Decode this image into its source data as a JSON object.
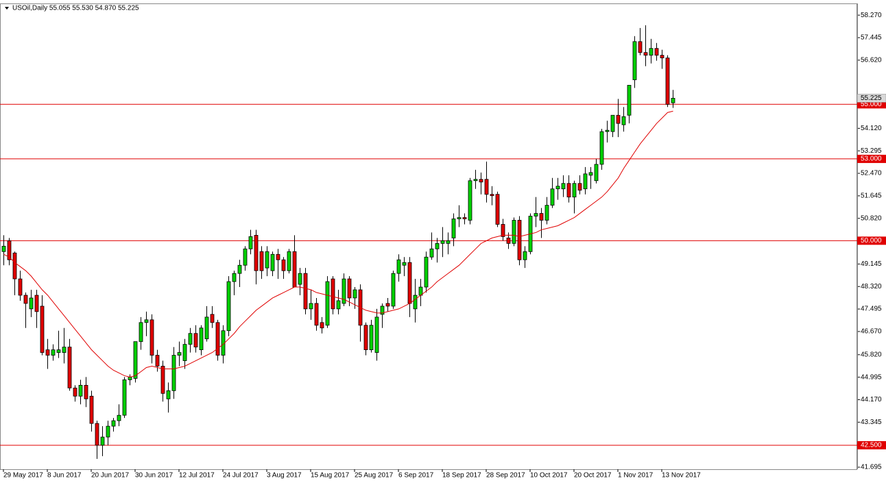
{
  "chart_data": {
    "type": "candlestick",
    "title": "USOil,Daily  55.055 55.530 54.870 55.225",
    "categories": [
      "29 May 2017",
      null,
      null,
      null,
      null,
      null,
      null,
      null,
      "8 Jun 2017",
      null,
      null,
      null,
      null,
      null,
      null,
      null,
      "20 Jun 2017",
      null,
      null,
      null,
      null,
      null,
      null,
      null,
      "30 Jun 2017",
      null,
      null,
      null,
      null,
      null,
      null,
      null,
      "12 Jul 2017",
      null,
      null,
      null,
      null,
      null,
      null,
      null,
      "24 Jul 2017",
      null,
      null,
      null,
      null,
      null,
      null,
      null,
      "3 Aug 2017",
      null,
      null,
      null,
      null,
      null,
      null,
      null,
      "15 Aug 2017",
      null,
      null,
      null,
      null,
      null,
      null,
      null,
      "25 Aug 2017",
      null,
      null,
      null,
      null,
      null,
      null,
      null,
      "6 Sep 2017",
      null,
      null,
      null,
      null,
      null,
      null,
      null,
      "18 Sep 2017",
      null,
      null,
      null,
      null,
      null,
      null,
      null,
      "28 Sep 2017",
      null,
      null,
      null,
      null,
      null,
      null,
      null,
      "10 Oct 2017",
      null,
      null,
      null,
      null,
      null,
      null,
      null,
      "20 Oct 2017",
      null,
      null,
      null,
      null,
      null,
      null,
      null,
      "1 Nov 2017",
      null,
      null,
      null,
      null,
      null,
      null,
      null,
      "13 Nov 2017",
      null,
      null
    ],
    "open": [
      49.6,
      50.0,
      49.55,
      48.6,
      48.0,
      47.5,
      48.0,
      47.6,
      46.0,
      45.8,
      45.9,
      45.9,
      46.1,
      44.6,
      44.3,
      44.7,
      44.3,
      43.3,
      42.5,
      42.8,
      43.2,
      43.4,
      43.6,
      44.9,
      44.95,
      46.3,
      47.0,
      47.1,
      45.8,
      45.4,
      44.2,
      44.5,
      45.8,
      45.6,
      46.2,
      46.6,
      46.0,
      46.4,
      47.3,
      47.0,
      45.8,
      46.7,
      48.5,
      48.8,
      49.1,
      49.7,
      50.2,
      49.6,
      49.0,
      48.9,
      49.5,
      49.3,
      48.9,
      49.6,
      48.4,
      48.8,
      47.5,
      47.7,
      47.0,
      46.9,
      48.6,
      47.5,
      47.7,
      48.6,
      47.9,
      48.2,
      46.9,
      46.0,
      45.9,
      47.3,
      47.7,
      47.6,
      48.8,
      49.1,
      49.2,
      47.5,
      48.0,
      48.3,
      49.4,
      49.7,
      49.9,
      49.9,
      50.1,
      50.8,
      50.85,
      50.75,
      52.2,
      52.25,
      52.25,
      51.7,
      51.7,
      50.6,
      50.1,
      49.9,
      50.75,
      49.3,
      49.6,
      50.9,
      51.0,
      50.75,
      51.3,
      51.9,
      51.9,
      52.1,
      51.6,
      52.1,
      51.9,
      52.4,
      52.2,
      52.8,
      54.0,
      54.0,
      54.6,
      54.25,
      54.6,
      55.9,
      57.3,
      56.9,
      56.8,
      57.05,
      56.8,
      56.7,
      55.055
    ],
    "high": [
      50.2,
      50.1,
      49.6,
      48.9,
      48.1,
      48.2,
      48.2,
      48.0,
      46.4,
      46.2,
      46.7,
      46.8,
      46.4,
      44.7,
      44.9,
      45.0,
      44.5,
      43.4,
      43.2,
      43.4,
      43.5,
      44.0,
      45.0,
      45.1,
      46.3,
      47.2,
      47.4,
      47.3,
      46.0,
      45.6,
      44.8,
      46.1,
      46.3,
      46.4,
      46.8,
      46.9,
      46.9,
      47.6,
      47.6,
      47.1,
      46.9,
      48.7,
      48.9,
      49.3,
      49.8,
      50.4,
      50.4,
      49.8,
      49.8,
      49.6,
      49.7,
      49.4,
      49.7,
      50.2,
      49.0,
      49.0,
      48.2,
      47.9,
      47.2,
      48.7,
      48.7,
      48.2,
      48.8,
      48.7,
      48.3,
      48.4,
      47.0,
      47.1,
      47.5,
      47.7,
      47.9,
      48.9,
      49.5,
      49.4,
      49.4,
      48.6,
      48.6,
      49.6,
      50.3,
      50.1,
      50.5,
      50.3,
      51.0,
      51.3,
      51.0,
      52.3,
      52.6,
      52.5,
      52.9,
      52.0,
      51.8,
      50.8,
      50.3,
      50.85,
      50.9,
      49.8,
      51.0,
      51.6,
      51.2,
      51.6,
      52.3,
      52.3,
      52.4,
      52.4,
      52.2,
      52.4,
      52.7,
      52.7,
      53.0,
      54.1,
      54.4,
      54.6,
      55.2,
      54.9,
      55.7,
      57.5,
      57.8,
      57.9,
      57.4,
      57.25,
      57.0,
      56.8,
      55.53
    ],
    "low": [
      49.1,
      49.1,
      48.0,
      47.8,
      46.8,
      47.2,
      46.8,
      45.8,
      45.3,
      45.6,
      45.7,
      45.5,
      44.5,
      44.1,
      44.0,
      43.9,
      43.0,
      42.0,
      42.1,
      42.5,
      43.0,
      43.2,
      43.5,
      44.7,
      44.8,
      46.0,
      46.5,
      45.5,
      45.2,
      44.1,
      43.7,
      44.2,
      45.4,
      45.3,
      45.9,
      45.9,
      45.8,
      46.3,
      46.8,
      45.6,
      45.5,
      46.5,
      48.0,
      48.3,
      48.9,
      49.5,
      48.4,
      48.6,
      48.7,
      48.7,
      48.6,
      48.6,
      48.8,
      48.3,
      48.0,
      47.3,
      47.1,
      46.7,
      46.6,
      46.8,
      47.3,
      47.3,
      47.6,
      47.6,
      47.5,
      46.3,
      45.8,
      45.9,
      45.6,
      46.8,
      47.4,
      47.5,
      48.5,
      48.7,
      47.2,
      47.0,
      47.6,
      48.1,
      49.3,
      49.2,
      49.4,
      49.5,
      49.8,
      50.5,
      50.6,
      50.6,
      51.9,
      51.7,
      51.4,
      51.3,
      50.5,
      50.0,
      49.7,
      49.8,
      49.1,
      49.0,
      49.5,
      50.5,
      50.1,
      50.6,
      51.2,
      51.5,
      51.6,
      51.4,
      51.0,
      51.7,
      51.7,
      51.9,
      52.1,
      52.6,
      53.6,
      53.8,
      53.8,
      54.0,
      54.3,
      55.6,
      56.8,
      56.4,
      56.5,
      56.6,
      56.3,
      54.9,
      54.87
    ],
    "close": [
      49.8,
      49.3,
      48.6,
      48.0,
      47.7,
      47.9,
      47.4,
      45.9,
      45.8,
      46.0,
      46.0,
      46.1,
      44.6,
      44.3,
      44.7,
      44.2,
      43.3,
      42.5,
      42.8,
      43.2,
      43.4,
      43.6,
      44.9,
      45.0,
      46.3,
      47.0,
      47.1,
      45.8,
      45.4,
      44.4,
      44.5,
      45.8,
      45.9,
      46.2,
      46.6,
      46.1,
      46.8,
      47.2,
      47.0,
      45.8,
      46.7,
      48.5,
      48.8,
      49.1,
      49.7,
      50.15,
      48.9,
      48.9,
      49.6,
      49.5,
      49.3,
      48.9,
      49.6,
      48.3,
      48.8,
      47.5,
      47.7,
      46.9,
      46.8,
      48.5,
      47.5,
      47.8,
      48.6,
      47.9,
      48.2,
      46.9,
      46.0,
      46.9,
      47.2,
      47.6,
      47.6,
      48.8,
      49.3,
      49.2,
      47.7,
      48.0,
      48.3,
      49.4,
      49.7,
      49.9,
      50.0,
      50.0,
      50.8,
      50.85,
      50.8,
      52.2,
      52.25,
      52.15,
      51.7,
      51.65,
      50.6,
      50.15,
      49.9,
      50.75,
      49.3,
      49.6,
      50.9,
      51.0,
      50.75,
      51.3,
      51.9,
      52.0,
      52.1,
      51.6,
      52.1,
      51.85,
      52.45,
      52.5,
      52.8,
      54.0,
      54.05,
      54.6,
      54.3,
      54.55,
      55.7,
      57.3,
      56.9,
      56.8,
      57.05,
      56.8,
      56.7,
      55.0,
      55.225
    ],
    "up_color": "#00d000",
    "down_color": "#e00000",
    "wick_color": "#000000",
    "ma": {
      "color": "#e00000",
      "values": [
        49.5,
        49.4,
        49.2,
        49.05,
        48.9,
        48.7,
        48.45,
        48.2,
        48.0,
        47.75,
        47.5,
        47.25,
        47.0,
        46.75,
        46.5,
        46.25,
        46.0,
        45.8,
        45.6,
        45.4,
        45.25,
        45.15,
        45.05,
        45.0,
        45.05,
        45.2,
        45.35,
        45.4,
        45.35,
        45.3,
        45.3,
        45.3,
        45.35,
        45.4,
        45.5,
        45.6,
        45.7,
        45.8,
        45.9,
        46.05,
        46.2,
        46.4,
        46.6,
        46.85,
        47.05,
        47.25,
        47.45,
        47.6,
        47.75,
        47.9,
        48.0,
        48.1,
        48.2,
        48.3,
        48.3,
        48.25,
        48.2,
        48.1,
        48.05,
        48.0,
        47.95,
        47.9,
        47.85,
        47.75,
        47.65,
        47.55,
        47.45,
        47.4,
        47.35,
        47.35,
        47.4,
        47.45,
        47.5,
        47.6,
        47.7,
        47.85,
        48.0,
        48.15,
        48.3,
        48.5,
        48.65,
        48.8,
        48.95,
        49.1,
        49.3,
        49.5,
        49.7,
        49.9,
        50.0,
        50.1,
        50.15,
        50.2,
        50.2,
        50.2,
        50.15,
        50.2,
        50.25,
        50.3,
        50.4,
        50.45,
        50.5,
        50.55,
        50.65,
        50.75,
        50.85,
        51.0,
        51.15,
        51.3,
        51.45,
        51.6,
        51.8,
        52.05,
        52.3,
        52.65,
        52.95,
        53.25,
        53.55,
        53.8,
        54.05,
        54.3,
        54.5,
        54.7,
        54.75
      ]
    },
    "hlines": [
      {
        "value": 55.0,
        "label": "55.000"
      },
      {
        "value": 53.0,
        "label": "53.000"
      },
      {
        "value": 50.0,
        "label": "50.000"
      },
      {
        "value": 42.5,
        "label": "42.500"
      }
    ],
    "hline_color": "#e00000",
    "current_price": {
      "value": 55.225,
      "label": "55.225"
    },
    "ylim": [
      41.62,
      58.7
    ],
    "yticks": [
      {
        "value": 58.27,
        "label": "58.270"
      },
      {
        "value": 57.445,
        "label": "57.445"
      },
      {
        "value": 56.62,
        "label": "56.620"
      },
      {
        "value": 54.12,
        "label": "54.120"
      },
      {
        "value": 53.295,
        "label": "53.295"
      },
      {
        "value": 52.47,
        "label": "52.470"
      },
      {
        "value": 51.645,
        "label": "51.645"
      },
      {
        "value": 50.82,
        "label": "50.820"
      },
      {
        "value": 49.145,
        "label": "49.145"
      },
      {
        "value": 48.32,
        "label": "48.320"
      },
      {
        "value": 47.495,
        "label": "47.495"
      },
      {
        "value": 46.67,
        "label": "46.670"
      },
      {
        "value": 45.82,
        "label": "45.820"
      },
      {
        "value": 44.995,
        "label": "44.995"
      },
      {
        "value": 44.17,
        "label": "44.170"
      },
      {
        "value": 43.345,
        "label": "43.345"
      },
      {
        "value": 41.695,
        "label": "41.695"
      }
    ],
    "grid": false
  }
}
